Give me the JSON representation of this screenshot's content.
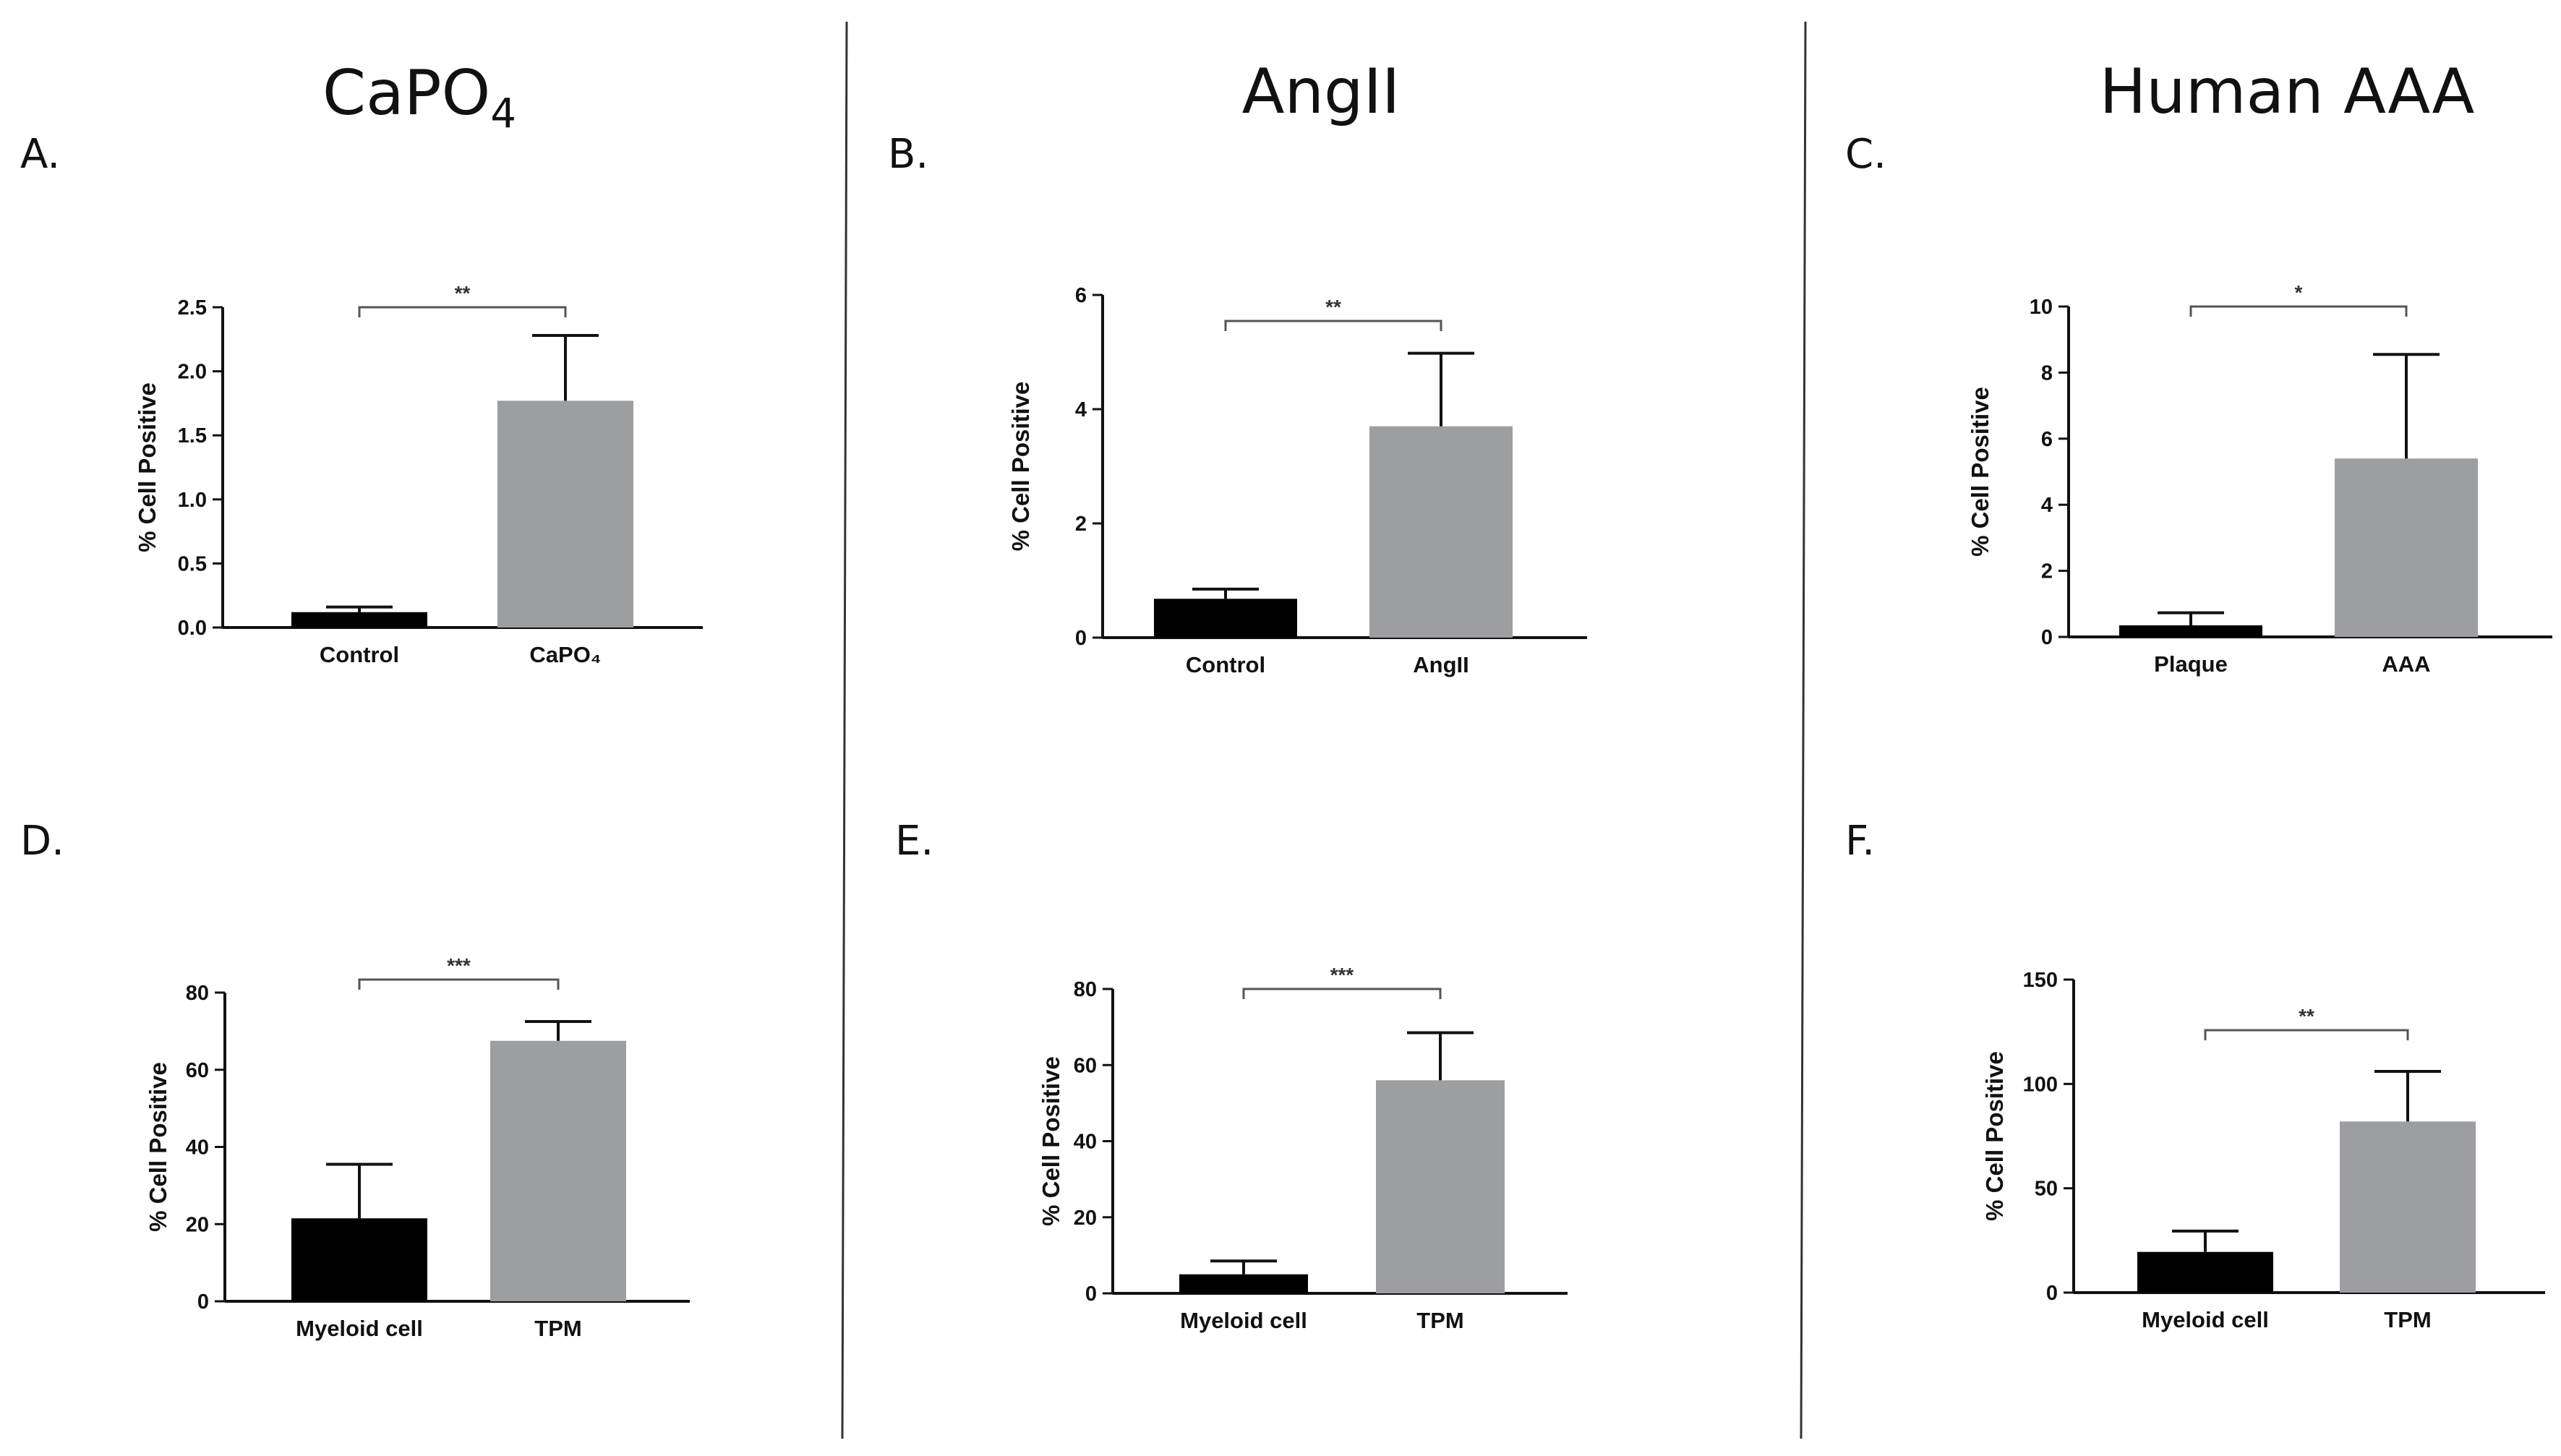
{
  "figure": {
    "columns": [
      {
        "title": "CaPO",
        "title_sub": "4"
      },
      {
        "title": "AngII",
        "title_sub": ""
      },
      {
        "title": "Human AAA",
        "title_sub": ""
      }
    ]
  },
  "colors": {
    "control_bar": "#000000",
    "treatment_bar": "#9d9ea2",
    "axis": "#111111",
    "divider": "#333333",
    "bracket": "#555555"
  },
  "chart_data": [
    {
      "panel": "A.",
      "type": "bar",
      "ylabel": "% Cell Positive",
      "categories": [
        "Control",
        "CaPO₄"
      ],
      "values": [
        0.12,
        1.77
      ],
      "errors": [
        0.04,
        0.51
      ],
      "ylim": [
        0,
        2.5
      ],
      "yticks": [
        0,
        0.5,
        1.0,
        1.5,
        2.0,
        2.5
      ],
      "ytick_labels": [
        "0.0",
        "0.5",
        "1.0",
        "1.5",
        "2.0",
        "2.5"
      ],
      "significance": "**"
    },
    {
      "panel": "B.",
      "type": "bar",
      "ylabel": "% Cell Positive",
      "categories": [
        "Control",
        "AngII"
      ],
      "values": [
        0.68,
        3.7
      ],
      "errors": [
        0.17,
        1.28
      ],
      "ylim": [
        0,
        6
      ],
      "yticks": [
        0,
        2,
        4,
        6
      ],
      "ytick_labels": [
        "0",
        "2",
        "4",
        "6"
      ],
      "significance": "**"
    },
    {
      "panel": "C.",
      "type": "bar",
      "ylabel": "% Cell Positive",
      "categories": [
        "Plaque",
        "AAA"
      ],
      "values": [
        0.35,
        5.4
      ],
      "errors": [
        0.38,
        3.15
      ],
      "ylim": [
        0,
        10
      ],
      "yticks": [
        0,
        2,
        4,
        6,
        8,
        10
      ],
      "ytick_labels": [
        "0",
        "2",
        "4",
        "6",
        "8",
        "10"
      ],
      "significance": "*"
    },
    {
      "panel": "D.",
      "type": "bar",
      "ylabel": "% Cell Positive",
      "categories": [
        "Myeloid cell",
        "TPM"
      ],
      "values": [
        21.5,
        67.5
      ],
      "errors": [
        14,
        5
      ],
      "ylim": [
        0,
        80
      ],
      "yticks": [
        0,
        20,
        40,
        60,
        80
      ],
      "ytick_labels": [
        "0",
        "20",
        "40",
        "60",
        "80"
      ],
      "significance": "***"
    },
    {
      "panel": "E.",
      "type": "bar",
      "ylabel": "% Cell Positive",
      "categories": [
        "Myeloid cell",
        "TPM"
      ],
      "values": [
        5,
        56
      ],
      "errors": [
        3.5,
        12.5
      ],
      "ylim": [
        0,
        80
      ],
      "yticks": [
        0,
        20,
        40,
        60,
        80
      ],
      "ytick_labels": [
        "0",
        "20",
        "40",
        "60",
        "80"
      ],
      "significance": "***"
    },
    {
      "panel": "F.",
      "type": "bar",
      "ylabel": "% Cell Positive",
      "categories": [
        "Myeloid cell",
        "TPM"
      ],
      "values": [
        19.5,
        82
      ],
      "errors": [
        10,
        24
      ],
      "ylim": [
        0,
        150
      ],
      "yticks": [
        0,
        50,
        100,
        150
      ],
      "ytick_labels": [
        "0",
        "50",
        "100",
        "150"
      ],
      "significance": "**"
    }
  ]
}
